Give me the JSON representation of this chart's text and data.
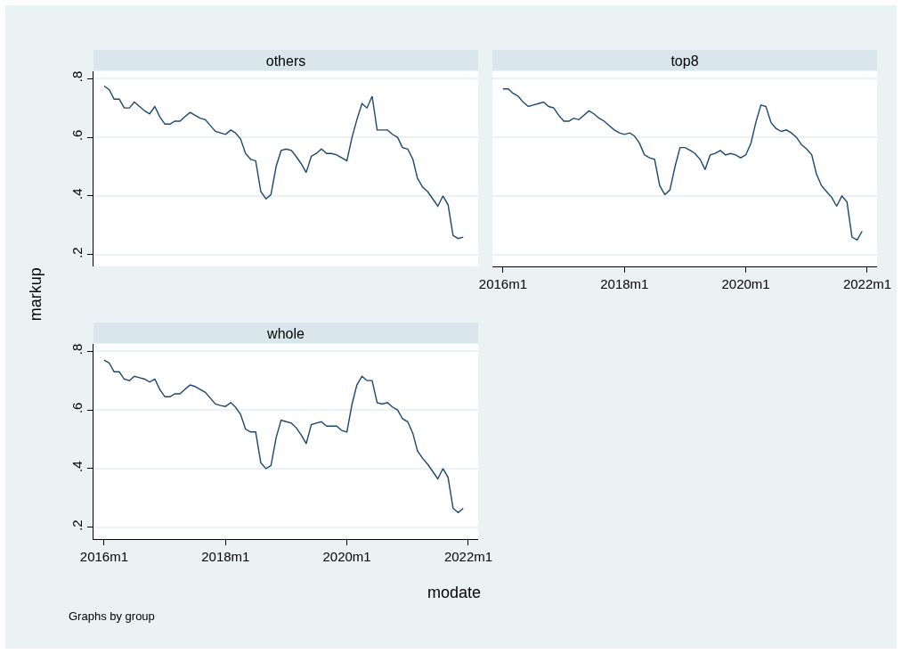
{
  "chart_data": [
    {
      "type": "line",
      "title": "others",
      "x": [
        "2016-01",
        "2016-02",
        "2016-03",
        "2016-04",
        "2016-05",
        "2016-06",
        "2016-07",
        "2016-08",
        "2016-09",
        "2016-10",
        "2016-11",
        "2016-12",
        "2017-01",
        "2017-02",
        "2017-03",
        "2017-04",
        "2017-05",
        "2017-06",
        "2017-07",
        "2017-08",
        "2017-09",
        "2017-10",
        "2017-11",
        "2017-12",
        "2018-01",
        "2018-02",
        "2018-03",
        "2018-04",
        "2018-05",
        "2018-06",
        "2018-07",
        "2018-08",
        "2018-09",
        "2018-10",
        "2018-11",
        "2018-12",
        "2019-01",
        "2019-02",
        "2019-03",
        "2019-04",
        "2019-05",
        "2019-06",
        "2019-07",
        "2019-08",
        "2019-09",
        "2019-10",
        "2019-11",
        "2019-12",
        "2020-01",
        "2020-02",
        "2020-03",
        "2020-04",
        "2020-05",
        "2020-06",
        "2020-07",
        "2020-08",
        "2020-09",
        "2020-10",
        "2020-11",
        "2020-12",
        "2021-01",
        "2021-02",
        "2021-03",
        "2021-04",
        "2021-05",
        "2021-06",
        "2021-07",
        "2021-08",
        "2021-09",
        "2021-10",
        "2021-11",
        "2021-12"
      ],
      "series": [
        {
          "color": "#1a476f",
          "values": [
            0.775,
            0.762,
            0.73,
            0.73,
            0.7,
            0.7,
            0.72,
            0.705,
            0.69,
            0.68,
            0.705,
            0.67,
            0.645,
            0.645,
            0.655,
            0.655,
            0.67,
            0.685,
            0.675,
            0.665,
            0.66,
            0.64,
            0.62,
            0.615,
            0.61,
            0.625,
            0.615,
            0.595,
            0.545,
            0.525,
            0.52,
            0.415,
            0.39,
            0.405,
            0.5,
            0.555,
            0.56,
            0.555,
            0.535,
            0.51,
            0.48,
            0.535,
            0.545,
            0.56,
            0.545,
            0.545,
            0.54,
            0.53,
            0.52,
            0.6,
            0.66,
            0.715,
            0.7,
            0.74,
            0.625,
            0.625,
            0.625,
            0.61,
            0.6,
            0.565,
            0.56,
            0.525,
            0.46,
            0.43,
            0.415,
            0.39,
            0.365,
            0.4,
            0.37,
            0.265,
            0.255,
            0.26
          ]
        }
      ],
      "xlim": [
        "2015-10-29",
        "2022-03-01"
      ],
      "ylim": [
        0.16,
        0.825
      ],
      "yticks": [
        {
          "value": 0.2,
          "label": ".2"
        },
        {
          "value": 0.4,
          "label": ".4"
        },
        {
          "value": 0.6,
          "label": ".6"
        },
        {
          "value": 0.8,
          "label": ".8"
        }
      ],
      "tick_labels": "y",
      "grid": "y"
    },
    {
      "type": "line",
      "title": "top8",
      "x": [
        "2016-01",
        "2016-02",
        "2016-03",
        "2016-04",
        "2016-05",
        "2016-06",
        "2016-07",
        "2016-08",
        "2016-09",
        "2016-10",
        "2016-11",
        "2016-12",
        "2017-01",
        "2017-02",
        "2017-03",
        "2017-04",
        "2017-05",
        "2017-06",
        "2017-07",
        "2017-08",
        "2017-09",
        "2017-10",
        "2017-11",
        "2017-12",
        "2018-01",
        "2018-02",
        "2018-03",
        "2018-04",
        "2018-05",
        "2018-06",
        "2018-07",
        "2018-08",
        "2018-09",
        "2018-10",
        "2018-11",
        "2018-12",
        "2019-01",
        "2019-02",
        "2019-03",
        "2019-04",
        "2019-05",
        "2019-06",
        "2019-07",
        "2019-08",
        "2019-09",
        "2019-10",
        "2019-11",
        "2019-12",
        "2020-01",
        "2020-02",
        "2020-03",
        "2020-04",
        "2020-05",
        "2020-06",
        "2020-07",
        "2020-08",
        "2020-09",
        "2020-10",
        "2020-11",
        "2020-12",
        "2021-01",
        "2021-02",
        "2021-03",
        "2021-04",
        "2021-05",
        "2021-06",
        "2021-07",
        "2021-08",
        "2021-09",
        "2021-10",
        "2021-11",
        "2021-12"
      ],
      "series": [
        {
          "color": "#1a476f",
          "values": [
            0.765,
            0.765,
            0.75,
            0.74,
            0.72,
            0.705,
            0.71,
            0.715,
            0.72,
            0.705,
            0.7,
            0.675,
            0.655,
            0.655,
            0.665,
            0.66,
            0.675,
            0.69,
            0.68,
            0.665,
            0.655,
            0.64,
            0.625,
            0.615,
            0.61,
            0.615,
            0.605,
            0.58,
            0.54,
            0.53,
            0.525,
            0.435,
            0.405,
            0.42,
            0.5,
            0.565,
            0.565,
            0.555,
            0.545,
            0.525,
            0.49,
            0.54,
            0.545,
            0.555,
            0.54,
            0.545,
            0.54,
            0.53,
            0.54,
            0.58,
            0.65,
            0.71,
            0.705,
            0.65,
            0.63,
            0.62,
            0.625,
            0.615,
            0.6,
            0.575,
            0.56,
            0.54,
            0.475,
            0.435,
            0.415,
            0.395,
            0.365,
            0.4,
            0.38,
            0.26,
            0.25,
            0.28
          ]
        }
      ],
      "xlim": [
        "2015-10-29",
        "2022-03-01"
      ],
      "ylim": [
        0.16,
        0.825
      ],
      "xticks": [
        {
          "value": "2016-01",
          "label": "2016m1"
        },
        {
          "value": "2018-01",
          "label": "2018m1"
        },
        {
          "value": "2020-01",
          "label": "2020m1"
        },
        {
          "value": "2022-01",
          "label": "2022m1"
        }
      ],
      "yticks": [
        {
          "value": 0.2,
          "label": null
        },
        {
          "value": 0.4,
          "label": null
        },
        {
          "value": 0.6,
          "label": null
        },
        {
          "value": 0.8,
          "label": null
        }
      ],
      "tick_labels": "x",
      "grid": "y"
    },
    {
      "type": "line",
      "title": "whole",
      "xlabel": "modate",
      "ylabel": "markup",
      "annotations": [
        "Graphs by group"
      ],
      "x": [
        "2016-01",
        "2016-02",
        "2016-03",
        "2016-04",
        "2016-05",
        "2016-06",
        "2016-07",
        "2016-08",
        "2016-09",
        "2016-10",
        "2016-11",
        "2016-12",
        "2017-01",
        "2017-02",
        "2017-03",
        "2017-04",
        "2017-05",
        "2017-06",
        "2017-07",
        "2017-08",
        "2017-09",
        "2017-10",
        "2017-11",
        "2017-12",
        "2018-01",
        "2018-02",
        "2018-03",
        "2018-04",
        "2018-05",
        "2018-06",
        "2018-07",
        "2018-08",
        "2018-09",
        "2018-10",
        "2018-11",
        "2018-12",
        "2019-01",
        "2019-02",
        "2019-03",
        "2019-04",
        "2019-05",
        "2019-06",
        "2019-07",
        "2019-08",
        "2019-09",
        "2019-10",
        "2019-11",
        "2019-12",
        "2020-01",
        "2020-02",
        "2020-03",
        "2020-04",
        "2020-05",
        "2020-06",
        "2020-07",
        "2020-08",
        "2020-09",
        "2020-10",
        "2020-11",
        "2020-12",
        "2021-01",
        "2021-02",
        "2021-03",
        "2021-04",
        "2021-05",
        "2021-06",
        "2021-07",
        "2021-08",
        "2021-09",
        "2021-10",
        "2021-11",
        "2021-12"
      ],
      "series": [
        {
          "color": "#1a476f",
          "values": [
            0.77,
            0.76,
            0.73,
            0.73,
            0.705,
            0.7,
            0.715,
            0.71,
            0.705,
            0.695,
            0.705,
            0.67,
            0.645,
            0.645,
            0.655,
            0.655,
            0.67,
            0.685,
            0.68,
            0.67,
            0.66,
            0.64,
            0.62,
            0.615,
            0.612,
            0.625,
            0.61,
            0.585,
            0.535,
            0.525,
            0.525,
            0.42,
            0.4,
            0.41,
            0.505,
            0.565,
            0.56,
            0.555,
            0.54,
            0.515,
            0.485,
            0.55,
            0.555,
            0.56,
            0.545,
            0.545,
            0.545,
            0.53,
            0.525,
            0.62,
            0.685,
            0.715,
            0.7,
            0.7,
            0.625,
            0.62,
            0.625,
            0.61,
            0.6,
            0.57,
            0.56,
            0.52,
            0.46,
            0.435,
            0.415,
            0.39,
            0.365,
            0.4,
            0.37,
            0.265,
            0.25,
            0.265
          ]
        }
      ],
      "xlim": [
        "2015-10-29",
        "2022-03-01"
      ],
      "ylim": [
        0.16,
        0.825
      ],
      "xticks": [
        {
          "value": "2016-01",
          "label": "2016m1"
        },
        {
          "value": "2018-01",
          "label": "2018m1"
        },
        {
          "value": "2020-01",
          "label": "2020m1"
        },
        {
          "value": "2022-01",
          "label": "2022m1"
        }
      ],
      "yticks": [
        {
          "value": 0.2,
          "label": ".2"
        },
        {
          "value": 0.4,
          "label": ".4"
        },
        {
          "value": 0.6,
          "label": ".6"
        },
        {
          "value": 0.8,
          "label": ".8"
        }
      ],
      "grid": "y"
    }
  ]
}
